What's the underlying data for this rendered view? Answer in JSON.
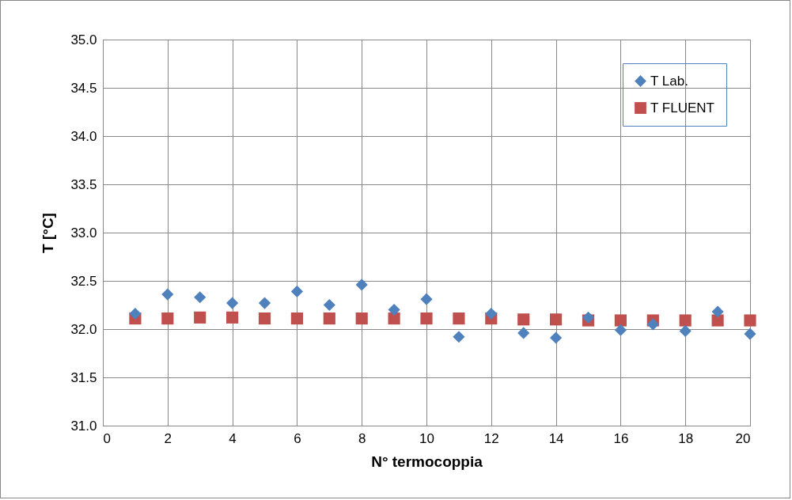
{
  "chart_data": {
    "type": "scatter",
    "xlabel": "N° termocoppia",
    "ylabel": "T  [°C]",
    "x": [
      1,
      2,
      3,
      4,
      5,
      6,
      7,
      8,
      9,
      10,
      11,
      12,
      13,
      14,
      15,
      16,
      17,
      18,
      19,
      20
    ],
    "series": [
      {
        "name": "T Lab.",
        "color": "#4f81bd",
        "marker": "diamond",
        "values": [
          32.16,
          32.36,
          32.33,
          32.27,
          32.27,
          32.39,
          32.25,
          32.46,
          32.2,
          32.31,
          31.92,
          32.16,
          31.96,
          31.91,
          32.12,
          31.99,
          32.05,
          31.98,
          32.18,
          31.95
        ]
      },
      {
        "name": "T FLUENT",
        "color": "#c0504d",
        "marker": "square",
        "values": [
          32.11,
          32.11,
          32.12,
          32.12,
          32.11,
          32.11,
          32.11,
          32.11,
          32.11,
          32.11,
          32.11,
          32.11,
          32.1,
          32.1,
          32.09,
          32.09,
          32.09,
          32.09,
          32.09,
          32.09
        ]
      }
    ],
    "xlim": [
      0,
      20
    ],
    "xticks": [
      0,
      2,
      4,
      6,
      8,
      10,
      12,
      14,
      16,
      18,
      20
    ],
    "ylim": [
      31.0,
      35.0
    ],
    "yticks": [
      {
        "value": 31,
        "label": "31.0"
      },
      {
        "value": 31.5,
        "label": "31.5"
      },
      {
        "value": 32,
        "label": "32.0"
      },
      {
        "value": 32.5,
        "label": "32.5"
      },
      {
        "value": 33,
        "label": "33.0"
      },
      {
        "value": 33.5,
        "label": "33.5"
      },
      {
        "value": 34,
        "label": "34.0"
      },
      {
        "value": 34.5,
        "label": "34.5"
      },
      {
        "value": 35,
        "label": "35.0"
      }
    ],
    "grid": true,
    "legend": "top right"
  }
}
